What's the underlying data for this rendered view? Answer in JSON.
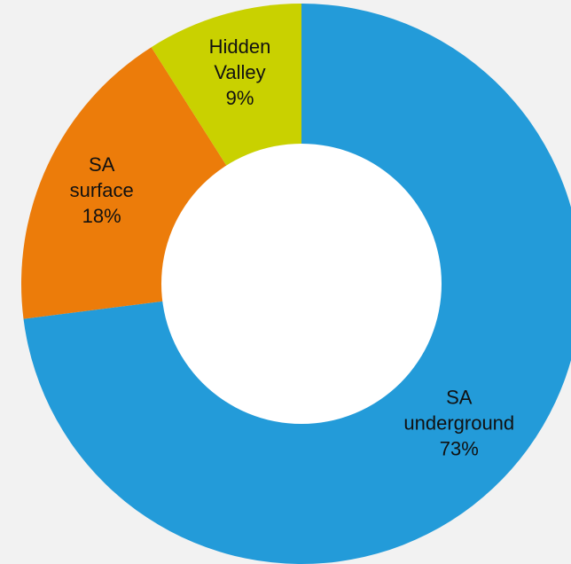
{
  "chart_data": {
    "type": "pie",
    "variant": "donut",
    "title": "",
    "start_angle": "12 o'clock",
    "direction": "clockwise",
    "legend": "none",
    "data_labels": "inside slices, category name with percentage",
    "slices": [
      {
        "label": "SA underground",
        "label_lines": [
          "SA",
          "underground"
        ],
        "value": 73,
        "value_label": "73%",
        "color": "#239bd9"
      },
      {
        "label": "SA surface",
        "label_lines": [
          "SA",
          "surface"
        ],
        "value": 18,
        "value_label": "18%",
        "color": "#ec7c0a"
      },
      {
        "label": "Hidden Valley",
        "label_lines": [
          "Hidden",
          "Valley"
        ],
        "value": 9,
        "value_label": "9%",
        "color": "#c9d100"
      }
    ]
  }
}
